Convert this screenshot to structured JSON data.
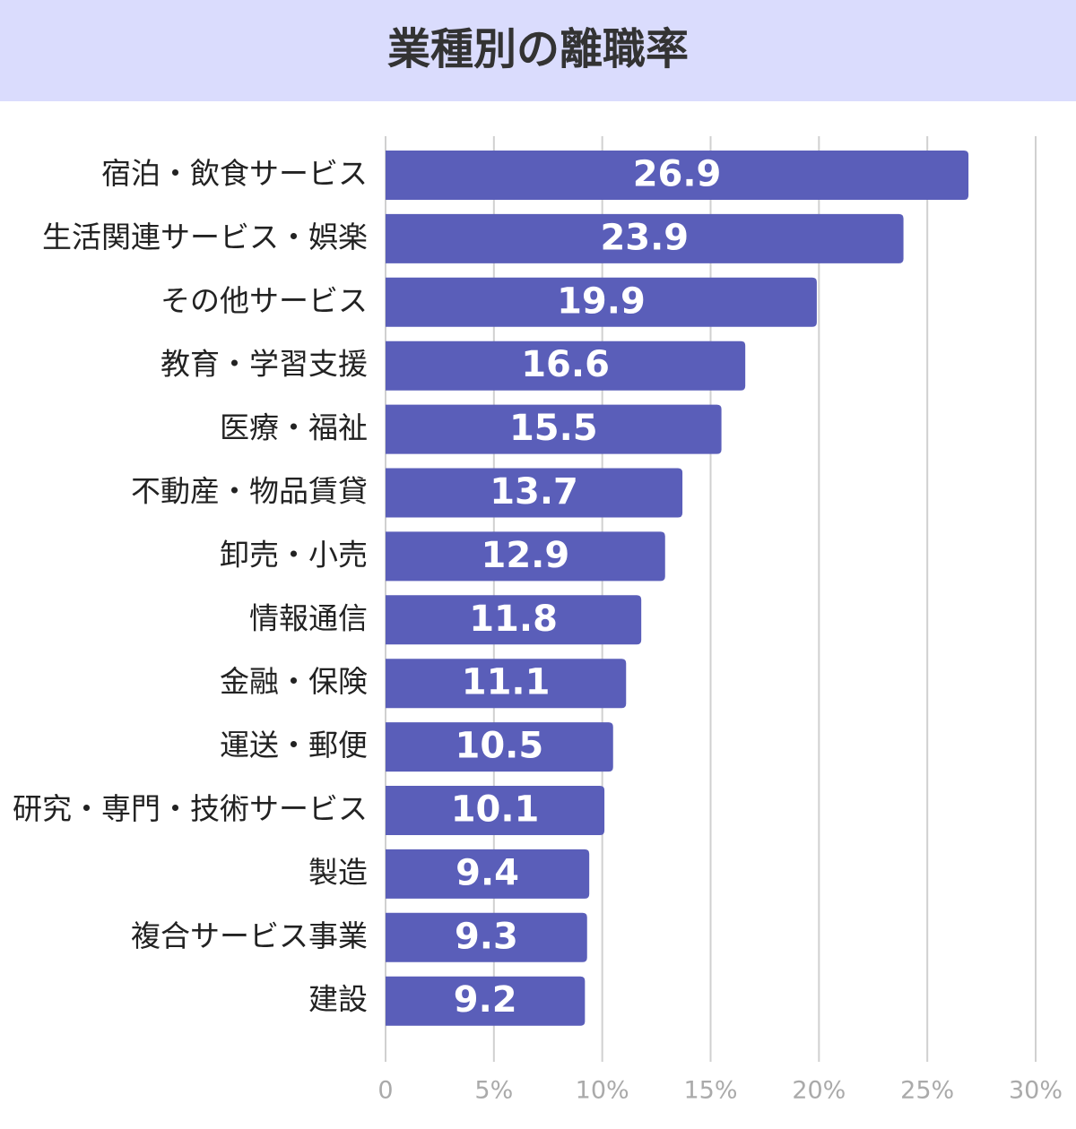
{
  "chart_data": {
    "type": "barh",
    "title": "業種別の離職率",
    "categories": [
      "宿泊・飲食サービス",
      "生活関連サービス・娯楽",
      "その他サービス",
      "教育・学習支援",
      "医療・福祉",
      "不動産・物品賃貸",
      "卸売・小売",
      "情報通信",
      "金融・保険",
      "運送・郵便",
      "研究・専門・技術サービス",
      "製造",
      "複合サービス事業",
      "建設"
    ],
    "values": [
      26.9,
      23.9,
      19.9,
      16.6,
      15.5,
      13.7,
      12.9,
      11.8,
      11.1,
      10.5,
      10.1,
      9.4,
      9.3,
      9.2
    ],
    "color": "#5a5eb9",
    "xlim": [
      0,
      30
    ],
    "xticks": [
      0,
      {
        "value": 5,
        "label": "5%"
      },
      {
        "value": 10,
        "label": "10%"
      },
      {
        "value": 15,
        "label": "15%"
      },
      {
        "value": 20,
        "label": "20%"
      },
      {
        "value": 25,
        "label": "25%"
      },
      {
        "value": 30,
        "label": "30%"
      }
    ],
    "grid": true
  }
}
